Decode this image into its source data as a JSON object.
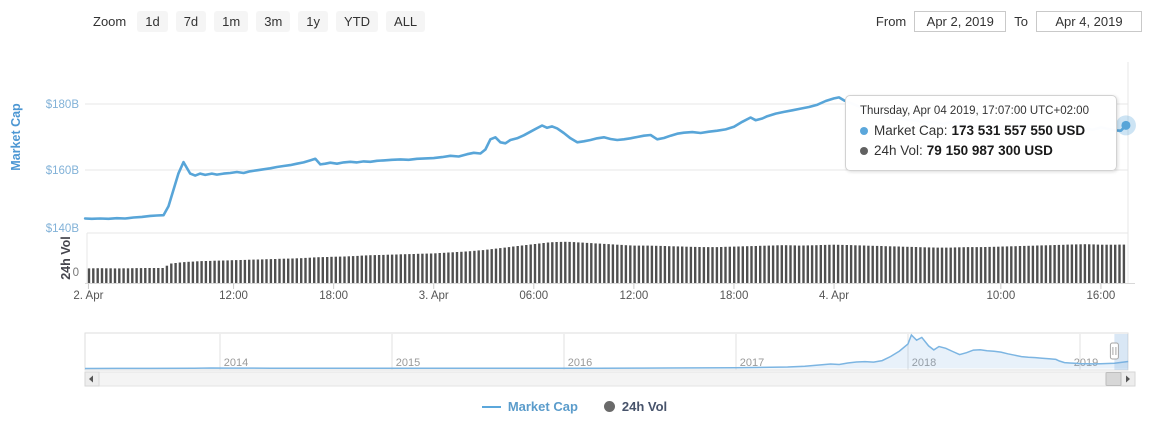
{
  "toolbar": {
    "zoom_label": "Zoom",
    "buttons": [
      "1d",
      "7d",
      "1m",
      "3m",
      "1y",
      "YTD",
      "ALL"
    ],
    "from_label": "From",
    "from_value": "Apr 2, 2019",
    "to_label": "To",
    "to_value": "Apr 4, 2019"
  },
  "tooltip": {
    "date": "Thursday, Apr 04 2019, 17:07:00 UTC+02:00",
    "rows": [
      {
        "label": "Market Cap:",
        "value": "173 531 557 550 USD",
        "color": "#5ba7db"
      },
      {
        "label": "24h Vol:",
        "value": "79 150 987 300 USD",
        "color": "#616161"
      }
    ]
  },
  "legend": {
    "items": [
      {
        "label": "Market Cap",
        "color": "#5b9ccb",
        "marker": "line"
      },
      {
        "label": "24h Vol",
        "color": "#47536b",
        "marker": "circle"
      }
    ]
  },
  "chart_data": {
    "type": "line",
    "title": "",
    "colors": {
      "market_cap_line": "#58a5d8",
      "volume_bar": "#4f4f4f",
      "navigator_line": "#7cb5e2",
      "grid": "#e7e7e7",
      "axis_label_blue": "#82b2d8",
      "axis_label_gray": "#555555"
    },
    "main": {
      "type": "line",
      "name": "Market Cap",
      "ylabel": "Market Cap",
      "unit": "USD billions",
      "ylim": [
        140,
        192
      ],
      "yticks": [
        {
          "v": 180,
          "label": "$180B",
          "grid": true
        },
        {
          "v": 160,
          "label": "$160B",
          "grid": true
        },
        {
          "v": 140,
          "label": "$140B",
          "grid": false
        }
      ],
      "points": [
        [
          3.1,
          145.3
        ],
        [
          3.5,
          145.2
        ],
        [
          4,
          145.3
        ],
        [
          4.5,
          145.2
        ],
        [
          5,
          145.4
        ],
        [
          5.5,
          145.3
        ],
        [
          6,
          145.6
        ],
        [
          6.5,
          145.8
        ],
        [
          7,
          146.1
        ],
        [
          7.4,
          146.2
        ],
        [
          7.8,
          146.3
        ],
        [
          8.1,
          149.0
        ],
        [
          8.4,
          154.0
        ],
        [
          8.7,
          159.0
        ],
        [
          9,
          162.4
        ],
        [
          9.2,
          160.6
        ],
        [
          9.4,
          158.9
        ],
        [
          9.7,
          158.3
        ],
        [
          10,
          158.9
        ],
        [
          10.3,
          158.5
        ],
        [
          10.7,
          158.9
        ],
        [
          11,
          158.6
        ],
        [
          11.4,
          158.9
        ],
        [
          11.8,
          159.1
        ],
        [
          12.2,
          159.4
        ],
        [
          12.6,
          159.1
        ],
        [
          13,
          159.6
        ],
        [
          13.4,
          159.9
        ],
        [
          13.8,
          160.2
        ],
        [
          14.2,
          160.5
        ],
        [
          14.6,
          160.9
        ],
        [
          15,
          161.2
        ],
        [
          15.4,
          161.5
        ],
        [
          15.8,
          161.9
        ],
        [
          16.2,
          162.3
        ],
        [
          16.6,
          162.9
        ],
        [
          16.9,
          163.4
        ],
        [
          17.2,
          161.7
        ],
        [
          17.5,
          161.9
        ],
        [
          17.8,
          162.2
        ],
        [
          18.2,
          161.9
        ],
        [
          18.6,
          162.3
        ],
        [
          19,
          162.5
        ],
        [
          19.4,
          162.3
        ],
        [
          19.8,
          162.6
        ],
        [
          20.2,
          162.5
        ],
        [
          20.6,
          162.8
        ],
        [
          21,
          162.9
        ],
        [
          21.5,
          163.1
        ],
        [
          22,
          163.2
        ],
        [
          22.5,
          163.1
        ],
        [
          23,
          163.4
        ],
        [
          23.5,
          163.5
        ],
        [
          24,
          163.6
        ],
        [
          24.5,
          163.9
        ],
        [
          25,
          164.3
        ],
        [
          25.5,
          164.1
        ],
        [
          26,
          164.8
        ],
        [
          26.4,
          165.2
        ],
        [
          26.8,
          165.0
        ],
        [
          27.1,
          166.2
        ],
        [
          27.4,
          169.3
        ],
        [
          27.7,
          169.9
        ],
        [
          28,
          168.4
        ],
        [
          28.3,
          168.1
        ],
        [
          28.6,
          169.1
        ],
        [
          29,
          169.6
        ],
        [
          29.4,
          170.5
        ],
        [
          29.8,
          171.6
        ],
        [
          30.2,
          172.7
        ],
        [
          30.5,
          173.5
        ],
        [
          30.8,
          172.8
        ],
        [
          31.1,
          173.2
        ],
        [
          31.4,
          172.6
        ],
        [
          31.8,
          171.2
        ],
        [
          32.2,
          169.6
        ],
        [
          32.6,
          168.4
        ],
        [
          33,
          168.7
        ],
        [
          33.4,
          169.1
        ],
        [
          33.8,
          169.6
        ],
        [
          34.2,
          169.9
        ],
        [
          34.6,
          169.4
        ],
        [
          35,
          169.1
        ],
        [
          35.4,
          169.3
        ],
        [
          35.8,
          169.6
        ],
        [
          36.2,
          170.0
        ],
        [
          36.6,
          170.4
        ],
        [
          37,
          170.6
        ],
        [
          37.4,
          169.3
        ],
        [
          37.8,
          169.7
        ],
        [
          38.2,
          170.4
        ],
        [
          38.6,
          171.0
        ],
        [
          39,
          171.3
        ],
        [
          39.5,
          171.5
        ],
        [
          40,
          171.2
        ],
        [
          40.5,
          171.6
        ],
        [
          41,
          171.9
        ],
        [
          41.5,
          172.3
        ],
        [
          42,
          173.1
        ],
        [
          42.5,
          174.6
        ],
        [
          43,
          175.9
        ],
        [
          43.3,
          175.1
        ],
        [
          43.7,
          175.6
        ],
        [
          44,
          176.3
        ],
        [
          44.5,
          177.1
        ],
        [
          45,
          177.6
        ],
        [
          45.5,
          178.1
        ],
        [
          46,
          178.6
        ],
        [
          46.5,
          179.1
        ],
        [
          47,
          179.8
        ],
        [
          47.5,
          180.9
        ],
        [
          48,
          181.7
        ],
        [
          48.3,
          182.0
        ],
        [
          48.6,
          181.1
        ],
        [
          49,
          180.3
        ],
        [
          49.5,
          179.2
        ],
        [
          50,
          178.2
        ],
        [
          50.5,
          177.4
        ],
        [
          51,
          176.6
        ],
        [
          51.5,
          176.0
        ],
        [
          52,
          175.6
        ],
        [
          52.5,
          175.1
        ],
        [
          53,
          174.9
        ],
        [
          53.5,
          174.4
        ],
        [
          54,
          174.5
        ],
        [
          54.5,
          174.0
        ],
        [
          55,
          174.5
        ],
        [
          55.5,
          173.9
        ],
        [
          56,
          173.6
        ],
        [
          56.5,
          173.2
        ],
        [
          57,
          173.5
        ],
        [
          57.5,
          172.9
        ],
        [
          58,
          172.7
        ],
        [
          58.5,
          173.2
        ],
        [
          59,
          173.6
        ],
        [
          59.5,
          173.1
        ],
        [
          60,
          172.5
        ],
        [
          60.5,
          172.2
        ],
        [
          61,
          172.6
        ],
        [
          61.5,
          172.9
        ],
        [
          62,
          172.4
        ],
        [
          62.5,
          172.1
        ],
        [
          63,
          172.6
        ],
        [
          63.5,
          172.2
        ],
        [
          64,
          172.9
        ],
        [
          64.5,
          172.4
        ],
        [
          64.9,
          172.0
        ],
        [
          65.2,
          171.9
        ],
        [
          65.5,
          173.5
        ]
      ],
      "last_point": {
        "h": 65.5,
        "v": 173.53155755
      }
    },
    "volume": {
      "type": "bar",
      "name": "24h Vol",
      "ylabel": "24h Vol",
      "unit": "USD billions",
      "ylim": [
        0,
        103
      ],
      "yticks": [
        {
          "v": 0,
          "label": "0"
        }
      ],
      "points": [
        [
          3,
          30
        ],
        [
          4,
          30.5
        ],
        [
          5,
          30
        ],
        [
          6,
          30.5
        ],
        [
          7,
          31
        ],
        [
          7.8,
          31
        ],
        [
          8.2,
          40
        ],
        [
          9,
          43
        ],
        [
          10,
          45
        ],
        [
          11,
          46
        ],
        [
          12,
          47
        ],
        [
          13,
          48
        ],
        [
          14,
          49
        ],
        [
          15,
          50
        ],
        [
          16,
          51
        ],
        [
          17,
          53
        ],
        [
          18,
          54
        ],
        [
          19,
          55
        ],
        [
          20,
          57
        ],
        [
          21,
          58
        ],
        [
          22,
          59
        ],
        [
          23,
          60
        ],
        [
          24,
          61
        ],
        [
          25,
          63
        ],
        [
          26,
          65
        ],
        [
          27,
          68
        ],
        [
          28,
          72
        ],
        [
          29,
          76
        ],
        [
          30,
          80
        ],
        [
          31,
          84
        ],
        [
          32,
          85
        ],
        [
          33,
          83
        ],
        [
          34,
          81
        ],
        [
          35,
          79
        ],
        [
          36,
          77
        ],
        [
          37,
          77
        ],
        [
          38,
          76
        ],
        [
          39,
          75
        ],
        [
          40,
          74
        ],
        [
          41,
          74
        ],
        [
          42,
          75
        ],
        [
          43,
          76
        ],
        [
          44,
          77
        ],
        [
          45,
          78
        ],
        [
          46,
          77
        ],
        [
          47,
          78
        ],
        [
          48,
          79
        ],
        [
          49,
          78
        ],
        [
          50,
          77
        ],
        [
          51,
          76
        ],
        [
          52,
          75
        ],
        [
          53,
          74
        ],
        [
          54,
          73
        ],
        [
          55,
          73
        ],
        [
          56,
          74
        ],
        [
          57,
          74
        ],
        [
          58,
          75
        ],
        [
          59,
          76
        ],
        [
          60,
          77
        ],
        [
          61,
          78
        ],
        [
          62,
          79
        ],
        [
          63,
          80
        ],
        [
          64,
          79
        ],
        [
          65,
          79
        ],
        [
          65.5,
          79.15
        ]
      ]
    },
    "xaxis": {
      "unit": "hours from Apr 2 2019 00:00 UTC+02:00",
      "range": [
        3.1,
        65.5
      ],
      "ticks": [
        {
          "label": "2. Apr",
          "h": 3.3
        },
        {
          "label": "12:00",
          "h": 12
        },
        {
          "label": "18:00",
          "h": 18
        },
        {
          "label": "3. Apr",
          "h": 24
        },
        {
          "label": "06:00",
          "h": 30
        },
        {
          "label": "12:00",
          "h": 36
        },
        {
          "label": "18:00",
          "h": 42
        },
        {
          "label": "4. Apr",
          "h": 48
        },
        {
          "label": "10:00",
          "h": 58
        },
        {
          "label": "16:00",
          "h": 64
        }
      ]
    },
    "navigator": {
      "type": "area",
      "name": "Market Cap all-time (navigator)",
      "unit": "USD billions",
      "xlim": [
        2013.21,
        2019.28
      ],
      "ylim": [
        0,
        860
      ],
      "years": [
        {
          "y": 2014,
          "label": "2014"
        },
        {
          "y": 2015,
          "label": "2015"
        },
        {
          "y": 2016,
          "label": "2016"
        },
        {
          "y": 2017,
          "label": "2017"
        },
        {
          "y": 2018,
          "label": "2018"
        },
        {
          "y": 2019,
          "label": "2019"
        }
      ],
      "selected_range_years": [
        2019.2,
        2019.28
      ],
      "points": [
        [
          2013.215,
          1.2
        ],
        [
          2013.4,
          1.4
        ],
        [
          2013.6,
          1.6
        ],
        [
          2013.85,
          5
        ],
        [
          2013.95,
          13
        ],
        [
          2014.05,
          11
        ],
        [
          2014.15,
          9
        ],
        [
          2014.3,
          8.5
        ],
        [
          2014.45,
          8
        ],
        [
          2014.6,
          7.5
        ],
        [
          2014.8,
          6
        ],
        [
          2015.0,
          4.5
        ],
        [
          2015.15,
          4
        ],
        [
          2015.35,
          4.2
        ],
        [
          2015.6,
          4.8
        ],
        [
          2015.8,
          5.5
        ],
        [
          2016.0,
          7
        ],
        [
          2016.2,
          8.5
        ],
        [
          2016.45,
          11
        ],
        [
          2016.6,
          13.5
        ],
        [
          2016.8,
          14.5
        ],
        [
          2017.0,
          17.5
        ],
        [
          2017.1,
          24
        ],
        [
          2017.2,
          29
        ],
        [
          2017.3,
          36
        ],
        [
          2017.4,
          55
        ],
        [
          2017.45,
          75
        ],
        [
          2017.5,
          95
        ],
        [
          2017.55,
          112
        ],
        [
          2017.6,
          100
        ],
        [
          2017.65,
          135
        ],
        [
          2017.7,
          160
        ],
        [
          2017.75,
          172
        ],
        [
          2017.8,
          158
        ],
        [
          2017.85,
          195
        ],
        [
          2017.9,
          300
        ],
        [
          2017.95,
          430
        ],
        [
          2018.0,
          610
        ],
        [
          2018.02,
          830
        ],
        [
          2018.05,
          700
        ],
        [
          2018.08,
          770
        ],
        [
          2018.12,
          560
        ],
        [
          2018.15,
          460
        ],
        [
          2018.18,
          545
        ],
        [
          2018.22,
          500
        ],
        [
          2018.26,
          420
        ],
        [
          2018.3,
          345
        ],
        [
          2018.34,
          390
        ],
        [
          2018.38,
          455
        ],
        [
          2018.42,
          465
        ],
        [
          2018.46,
          440
        ],
        [
          2018.5,
          425
        ],
        [
          2018.54,
          405
        ],
        [
          2018.58,
          365
        ],
        [
          2018.62,
          330
        ],
        [
          2018.66,
          295
        ],
        [
          2018.7,
          280
        ],
        [
          2018.74,
          270
        ],
        [
          2018.78,
          255
        ],
        [
          2018.82,
          240
        ],
        [
          2018.86,
          225
        ],
        [
          2018.88,
          185
        ],
        [
          2018.91,
          145
        ],
        [
          2018.94,
          135
        ],
        [
          2018.97,
          128
        ],
        [
          2019.0,
          122
        ],
        [
          2019.04,
          116
        ],
        [
          2019.08,
          113
        ],
        [
          2019.12,
          118
        ],
        [
          2019.16,
          124
        ],
        [
          2019.2,
          131
        ],
        [
          2019.24,
          150
        ],
        [
          2019.28,
          173.5
        ]
      ]
    }
  }
}
